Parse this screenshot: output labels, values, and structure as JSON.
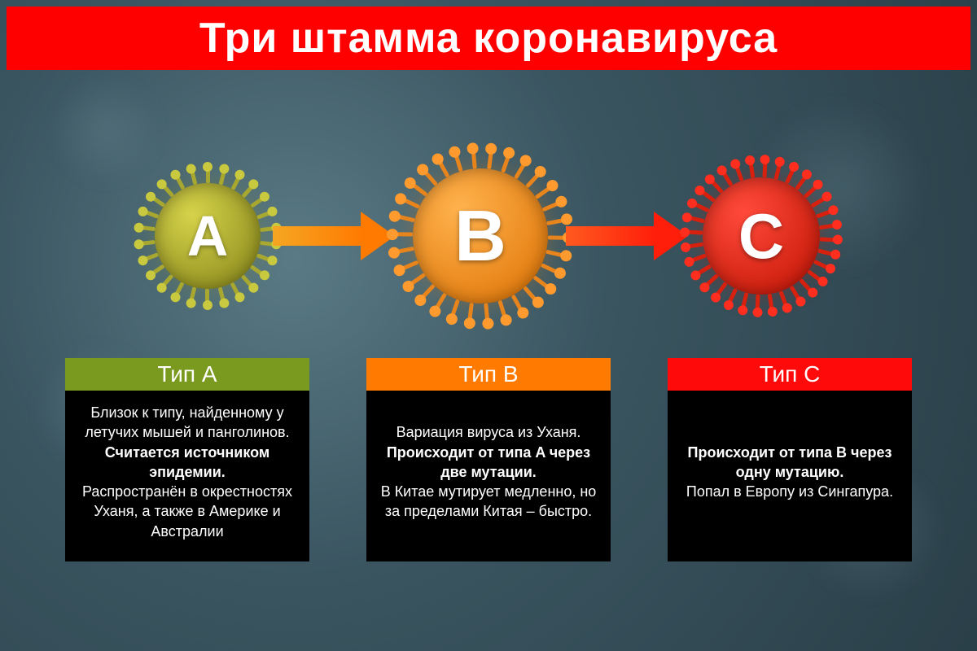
{
  "type": "infographic",
  "title": "Три штамма коронавируса",
  "title_bar": {
    "bg": "#ff0000",
    "text_color": "#ffffff",
    "font_size": 52
  },
  "background": {
    "gradient_inner": "#5a7a85",
    "gradient_mid": "#3a5560",
    "gradient_outer": "#2a3f48"
  },
  "viruses": [
    {
      "id": "A",
      "letter": "A",
      "label_color": "#ffffff",
      "diameter": 180,
      "letter_fontsize": 70,
      "core_gradient_inner": "#d6d24a",
      "core_gradient_outer": "#8f8f1f",
      "spike": {
        "count": 26,
        "stem_color": "#a8a830",
        "cap_color": "#c9c93f",
        "stem_len": 18,
        "cap_d": 12
      }
    },
    {
      "id": "B",
      "letter": "B",
      "label_color": "#ffffff",
      "diameter": 230,
      "letter_fontsize": 88,
      "core_gradient_inner": "#ffb24d",
      "core_gradient_outer": "#e27a0c",
      "spike": {
        "count": 30,
        "stem_color": "#e8841c",
        "cap_color": "#ff9a2e",
        "stem_len": 22,
        "cap_d": 14
      }
    },
    {
      "id": "C",
      "letter": "C",
      "label_color": "#ffffff",
      "diameter": 200,
      "letter_fontsize": 78,
      "core_gradient_inner": "#ff4a3a",
      "core_gradient_outer": "#c91a0a",
      "spike": {
        "count": 32,
        "stem_color": "#d8200f",
        "cap_color": "#ff2e1e",
        "stem_len": 20,
        "cap_d": 12
      }
    }
  ],
  "arrows": [
    {
      "from": "A",
      "to": "B",
      "color_start": "#f5a623",
      "color_end": "#ff7a00"
    },
    {
      "from": "B",
      "to": "C",
      "color_start": "#ff5a1f",
      "color_end": "#ff1e0a"
    }
  ],
  "cards": [
    {
      "header": "Тип A",
      "header_bg": "#7a9a1f",
      "header_text": "#ffffff",
      "body_bg": "#000000",
      "body_text": "#ffffff",
      "segments": [
        {
          "text": "Близок к типу, найденному у летучих мышей и панголинов.",
          "bold": false
        },
        {
          "text": "Считается источником эпидемии.",
          "bold": true
        },
        {
          "text": "Распространён в окрестностях Уханя, а также в Америке и Австралии",
          "bold": false
        }
      ]
    },
    {
      "header": "Тип B",
      "header_bg": "#ff7a00",
      "header_text": "#ffffff",
      "body_bg": "#000000",
      "body_text": "#ffffff",
      "segments": [
        {
          "text": "Вариация вируса из Уханя.",
          "bold": false
        },
        {
          "text": "Происходит от типа A через две мутации.",
          "bold": true
        },
        {
          "text": "В Китае мутирует медленно, но за пределами Китая – быстро.",
          "bold": false
        }
      ]
    },
    {
      "header": "Тип C",
      "header_bg": "#ff0a0a",
      "header_text": "#ffffff",
      "body_bg": "#000000",
      "body_text": "#ffffff",
      "segments": [
        {
          "text": "Происходит от типа B через одну мутацию.",
          "bold": true
        },
        {
          "text": "Попал в Европу из Сингапура.",
          "bold": false
        }
      ]
    }
  ]
}
